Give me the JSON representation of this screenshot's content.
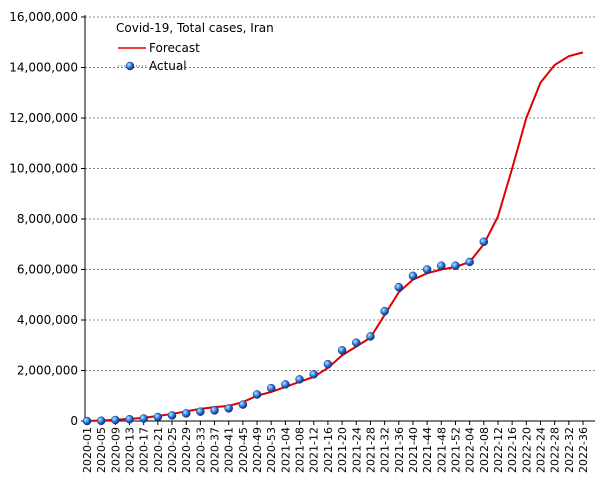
{
  "chart_data": {
    "type": "line",
    "title": "Covid-19, Total cases, Iran",
    "categories": [
      "2020-01",
      "2020-05",
      "2020-09",
      "2020-13",
      "2020-17",
      "2020-21",
      "2020-25",
      "2020-29",
      "2020-33",
      "2020-37",
      "2020-41",
      "2020-45",
      "2020-49",
      "2020-53",
      "2021-04",
      "2021-08",
      "2021-12",
      "2021-16",
      "2021-20",
      "2021-24",
      "2021-28",
      "2021-32",
      "2021-36",
      "2021-40",
      "2021-44",
      "2021-48",
      "2021-52",
      "2022-04",
      "2022-08",
      "2022-12",
      "2022-16",
      "2022-20",
      "2022-24",
      "2022-28",
      "2022-32",
      "2022-36"
    ],
    "series": [
      {
        "name": "Forecast",
        "color": "#e00000",
        "marker": false,
        "values": [
          0,
          20000,
          50000,
          80000,
          130000,
          200000,
          280000,
          380000,
          480000,
          550000,
          600000,
          750000,
          1000000,
          1150000,
          1350000,
          1550000,
          1750000,
          2100000,
          2600000,
          2950000,
          3300000,
          4200000,
          5100000,
          5600000,
          5850000,
          6000000,
          6100000,
          6300000,
          7000000,
          8100000,
          10000000,
          12000000,
          13400000,
          14100000,
          14450000,
          14600000
        ]
      },
      {
        "name": "Actual",
        "color": "#2a6fd6",
        "marker": true,
        "values": [
          0,
          10000,
          40000,
          70000,
          100000,
          160000,
          220000,
          300000,
          370000,
          420000,
          500000,
          650000,
          1050000,
          1300000,
          1450000,
          1650000,
          1850000,
          2250000,
          2800000,
          3100000,
          3350000,
          4350000,
          5300000,
          5750000,
          6000000,
          6150000,
          6150000,
          6300000,
          7100000,
          null,
          null,
          null,
          null,
          null,
          null,
          null
        ]
      }
    ],
    "ylim": [
      0,
      16000000
    ],
    "yticks": [
      {
        "value": 0,
        "label": "0"
      },
      {
        "value": 2000000,
        "label": "2,000,000"
      },
      {
        "value": 4000000,
        "label": "4,000,000"
      },
      {
        "value": 6000000,
        "label": "6,000,000"
      },
      {
        "value": 8000000,
        "label": "8,000,000"
      },
      {
        "value": 10000000,
        "label": "10,000,000"
      },
      {
        "value": 12000000,
        "label": "12,000,000"
      },
      {
        "value": 14000000,
        "label": "14,000,000"
      },
      {
        "value": 16000000,
        "label": "16,000,000"
      }
    ],
    "grid": true
  }
}
